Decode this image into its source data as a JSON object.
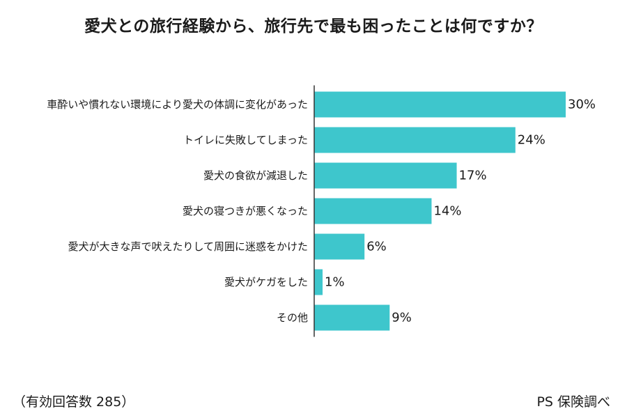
{
  "chart_data": {
    "type": "bar",
    "orientation": "horizontal",
    "title": "愛犬との旅行経験から、旅行先で最も困ったことは何ですか？",
    "categories": [
      "車酔いや慣れない環境により愛犬の体調に変化があった",
      "トイレに失敗してしまった",
      "愛犬の食欲が減退した",
      "愛犬の寝つきが悪くなった",
      "愛犬が大きな声で吠えたりして周囲に迷惑をかけた",
      "愛犬がケガをした",
      "その他"
    ],
    "values": [
      30,
      24,
      17,
      14,
      6,
      1,
      9
    ],
    "value_suffix": "%",
    "xlim": [
      0,
      30
    ],
    "bar_color": "#3ec6cc",
    "axis_color": "#333333",
    "xlabel": "",
    "ylabel": ""
  },
  "footer": {
    "respondents": "（有効回答数 285）",
    "source": "PS 保険調べ"
  }
}
